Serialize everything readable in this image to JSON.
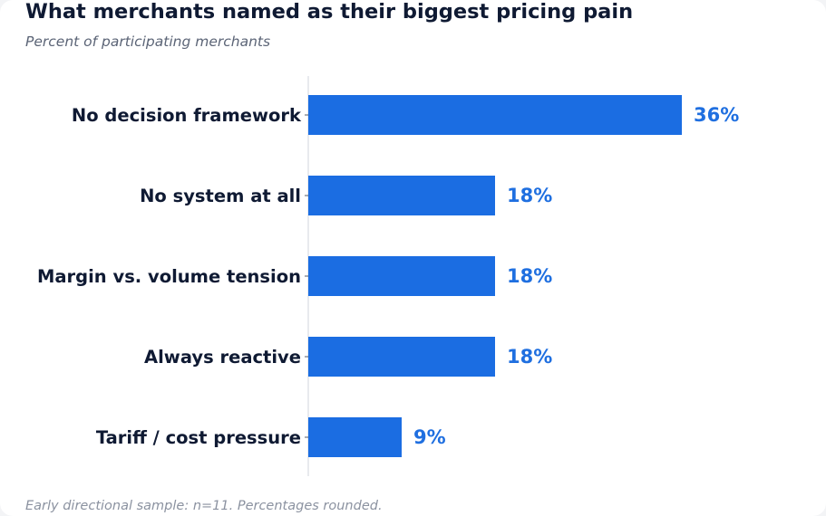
{
  "title": "What merchants named as their biggest pricing pain",
  "subtitle": "Percent of participating merchants",
  "footnote": "Early directional sample: n=11. Percentages rounded.",
  "colors": {
    "bar": "#1b6de2",
    "value_label": "#1f6fe0",
    "category_label": "#0f1a33",
    "axis": "#d9dde3"
  },
  "chart_data": {
    "type": "bar",
    "orientation": "horizontal",
    "title": "What merchants named as their biggest pricing pain",
    "subtitle": "Percent of participating merchants",
    "categories": [
      "No decision framework",
      "No system at all",
      "Margin vs. volume tension",
      "Always reactive",
      "Tariff / cost pressure"
    ],
    "values": [
      36,
      18,
      18,
      18,
      9
    ],
    "value_labels": [
      "36%",
      "18%",
      "18%",
      "18%",
      "9%"
    ],
    "unit": "%",
    "xlim": [
      0,
      44
    ],
    "grid": false,
    "legend": "none"
  }
}
